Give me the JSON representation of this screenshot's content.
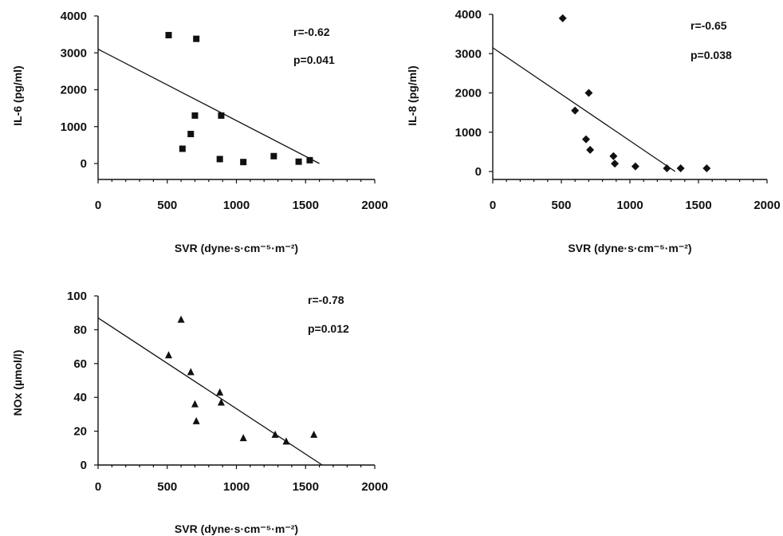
{
  "chart_data": [
    {
      "type": "scatter",
      "marker": "square",
      "xlabel": "SVR (dyne·s·cm⁻⁵·m⁻²)",
      "ylabel": "IL-6 (pg/ml)",
      "xlim": [
        0,
        2000
      ],
      "ylim": [
        0,
        4000
      ],
      "xticks": [
        "0",
        "500",
        "1000",
        "1500",
        "2000"
      ],
      "yticks": [
        "0",
        "1000",
        "2000",
        "3000",
        "4000"
      ],
      "stats": {
        "r": "r=-0.62",
        "p": "p=0.041"
      },
      "x": [
        510,
        610,
        670,
        700,
        710,
        880,
        890,
        1050,
        1270,
        1450,
        1530
      ],
      "y": [
        3480,
        400,
        800,
        1300,
        3380,
        120,
        1300,
        40,
        200,
        50,
        90
      ],
      "fit": {
        "x": [
          0,
          1600
        ],
        "y": [
          3100,
          0
        ]
      }
    },
    {
      "type": "scatter",
      "marker": "diamond",
      "xlabel": "SVR (dyne·s·cm⁻⁵·m⁻²)",
      "ylabel": "IL-8 (pg/ml)",
      "xlim": [
        0,
        2000
      ],
      "ylim": [
        0,
        4000
      ],
      "xticks": [
        "0",
        "500",
        "1000",
        "1500",
        "2000"
      ],
      "yticks": [
        "0",
        "1000",
        "2000",
        "3000",
        "4000"
      ],
      "stats": {
        "r": "r=-0.65",
        "p": "p=0.038"
      },
      "x": [
        510,
        600,
        680,
        700,
        710,
        880,
        890,
        1040,
        1270,
        1370,
        1560
      ],
      "y": [
        3900,
        1550,
        820,
        2000,
        550,
        390,
        200,
        130,
        80,
        80,
        80
      ],
      "fit": {
        "x": [
          0,
          1330
        ],
        "y": [
          3150,
          0
        ]
      }
    },
    {
      "type": "scatter",
      "marker": "triangle",
      "xlabel": "SVR (dyne·s·cm⁻⁵·m⁻²)",
      "ylabel": "NOx (µmol/l)",
      "ylabel_sub": "x",
      "xlim": [
        0,
        2000
      ],
      "ylim": [
        0,
        100
      ],
      "xticks": [
        "0",
        "500",
        "1000",
        "1500",
        "2000"
      ],
      "yticks": [
        "0",
        "20",
        "40",
        "60",
        "80",
        "100"
      ],
      "stats": {
        "r": "r=-0.78",
        "p": "p=0.012"
      },
      "x": [
        510,
        600,
        670,
        700,
        710,
        880,
        890,
        1050,
        1280,
        1360,
        1560
      ],
      "y": [
        65,
        86,
        55,
        36,
        26,
        43,
        37,
        16,
        18,
        14,
        18
      ],
      "fit": {
        "x": [
          0,
          1620
        ],
        "y": [
          87,
          0
        ]
      }
    }
  ]
}
